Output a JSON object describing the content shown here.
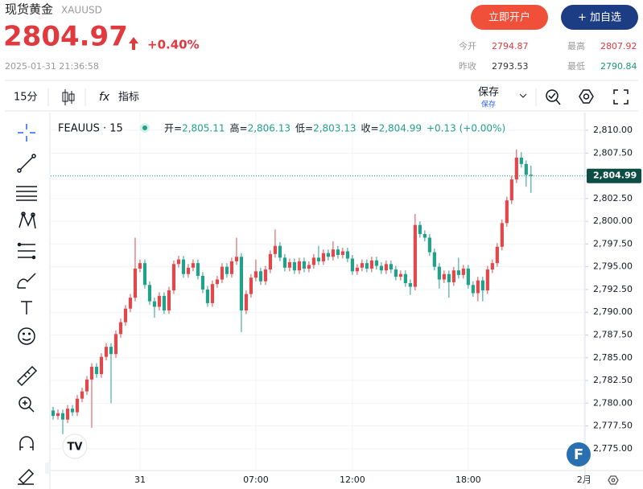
{
  "header": {
    "name": "现货黄金",
    "symbol": "XAUUSD",
    "price": "2804.97",
    "change": "+0.40%",
    "datetime": "2025-01-31 21:36:58",
    "buttons": [
      "立即开户",
      "+ 加自选"
    ],
    "stats": [
      {
        "label": "今开",
        "value": "2794.87"
      },
      {
        "label": "最高",
        "value": "2807.92"
      },
      {
        "label": "昨收",
        "value": "2793.53"
      },
      {
        "label": "最低",
        "value": "2790.84"
      }
    ]
  },
  "toolbar": {
    "interval": "15分",
    "indicators": "指标",
    "save": "保存",
    "save_sub": "保存"
  },
  "chart_data": {
    "type": "candlestick",
    "symbol_label": "FEAUUS · 15",
    "legend": [
      {
        "key": "开=",
        "value": "2,805.11"
      },
      {
        "key": "高=",
        "value": "2,806.13"
      },
      {
        "key": "低=",
        "value": "2,803.13"
      },
      {
        "key": "收=",
        "value": "2,804.99"
      },
      {
        "key": "",
        "value": "+0.13 (+0.00%)"
      }
    ],
    "up_color": "#e0494b",
    "down_color": "#22a08a",
    "grid": true,
    "open": [
      2779.2,
      2778.6,
      2778.9,
      2778.2,
      2779.4,
      2779.0,
      2780.5,
      2781.3,
      2782.6,
      2784.0,
      2783.2,
      2785.1,
      2786.2,
      2785.4,
      2787.6,
      2788.9,
      2790.4,
      2791.6,
      2794.8,
      2795.4,
      2793.0,
      2791.2,
      2790.6,
      2791.8,
      2790.2,
      2792.4,
      2795.3,
      2795.8,
      2794.2,
      2794.9,
      2795.4,
      2794.0,
      2792.5,
      2791.0,
      2793.1,
      2793.6,
      2795.0,
      2794.2,
      2795.6,
      2796.1,
      2790.2,
      2792.0,
      2793.8,
      2794.5,
      2793.4,
      2794.7,
      2796.4,
      2797.3,
      2796.0,
      2794.9,
      2795.5,
      2794.6,
      2795.6,
      2794.8,
      2795.2,
      2796.0,
      2795.6,
      2796.5,
      2796.1,
      2796.9,
      2796.3,
      2796.7,
      2795.9,
      2794.5,
      2794.9,
      2795.4,
      2794.8,
      2795.7,
      2795.1,
      2794.6,
      2795.3,
      2794.7,
      2793.9,
      2794.2,
      2793.2,
      2792.8,
      2799.6,
      2798.6,
      2798.2,
      2796.6,
      2795.0,
      2793.6,
      2794.2,
      2793.3,
      2794.6,
      2794.1,
      2794.8,
      2793.0,
      2792.1,
      2793.5,
      2792.4,
      2794.7,
      2795.4,
      2797.2,
      2799.8,
      2802.3,
      2804.6,
      2807.0,
      2806.3,
      2805.11
    ],
    "high": [
      2779.6,
      2779.3,
      2779.3,
      2779.8,
      2779.8,
      2780.9,
      2781.7,
      2783.0,
      2784.4,
      2784.4,
      2785.5,
      2786.6,
      2786.6,
      2788.0,
      2789.3,
      2790.8,
      2792.0,
      2798.2,
      2795.8,
      2795.8,
      2793.4,
      2791.6,
      2792.2,
      2792.2,
      2792.8,
      2795.7,
      2796.2,
      2796.2,
      2795.3,
      2795.8,
      2795.8,
      2794.4,
      2792.9,
      2793.5,
      2794.0,
      2795.4,
      2795.4,
      2796.0,
      2798.2,
      2796.5,
      2792.4,
      2794.2,
      2795.8,
      2794.9,
      2795.1,
      2796.8,
      2799.1,
      2797.7,
      2796.4,
      2795.9,
      2795.9,
      2796.0,
      2796.0,
      2795.6,
      2796.4,
      2797.3,
      2796.9,
      2796.9,
      2797.8,
      2797.3,
      2797.1,
      2797.1,
      2796.3,
      2795.3,
      2795.8,
      2795.8,
      2796.1,
      2796.1,
      2795.5,
      2795.7,
      2795.7,
      2795.1,
      2794.6,
      2794.6,
      2793.6,
      2800.8,
      2800.0,
      2799.0,
      2798.6,
      2797.0,
      2795.4,
      2794.6,
      2794.6,
      2795.0,
      2796.0,
      2795.2,
      2795.2,
      2793.4,
      2793.9,
      2793.9,
      2795.1,
      2795.8,
      2797.6,
      2800.2,
      2802.7,
      2805.0,
      2807.9,
      2807.6,
      2806.7,
      2806.13
    ],
    "low": [
      2778.2,
      2778.2,
      2776.6,
      2777.8,
      2778.6,
      2778.6,
      2780.1,
      2780.9,
      2777.3,
      2782.8,
      2782.8,
      2784.7,
      2780.0,
      2785.0,
      2787.2,
      2788.5,
      2790.0,
      2791.2,
      2794.4,
      2792.6,
      2790.8,
      2789.4,
      2790.2,
      2789.8,
      2789.8,
      2792.0,
      2794.9,
      2793.8,
      2793.8,
      2794.5,
      2793.6,
      2792.1,
      2790.6,
      2790.6,
      2792.7,
      2793.2,
      2793.8,
      2793.8,
      2795.2,
      2787.8,
      2789.8,
      2791.6,
      2793.4,
      2793.0,
      2793.0,
      2794.3,
      2796.0,
      2795.6,
      2794.5,
      2794.5,
      2794.2,
      2794.2,
      2794.4,
      2794.4,
      2794.8,
      2795.2,
      2795.2,
      2795.7,
      2795.7,
      2795.9,
      2795.9,
      2795.5,
      2794.1,
      2794.1,
      2794.5,
      2794.4,
      2794.4,
      2794.7,
      2794.2,
      2794.2,
      2794.3,
      2793.5,
      2793.5,
      2792.8,
      2791.9,
      2792.4,
      2798.2,
      2797.8,
      2796.2,
      2794.6,
      2792.6,
      2793.2,
      2791.6,
      2792.9,
      2793.7,
      2793.7,
      2792.6,
      2791.7,
      2791.2,
      2791.2,
      2792.0,
      2794.3,
      2795.0,
      2796.8,
      2799.4,
      2801.9,
      2804.2,
      2805.9,
      2803.8,
      2803.13
    ],
    "close": [
      2778.6,
      2778.9,
      2778.2,
      2779.4,
      2779.0,
      2780.5,
      2781.3,
      2782.6,
      2784.0,
      2783.2,
      2785.1,
      2786.2,
      2785.4,
      2787.6,
      2788.9,
      2790.4,
      2791.6,
      2794.8,
      2795.4,
      2793.0,
      2791.2,
      2790.6,
      2791.8,
      2790.2,
      2792.4,
      2795.3,
      2795.8,
      2794.2,
      2794.9,
      2795.4,
      2794.0,
      2792.5,
      2791.0,
      2793.1,
      2793.6,
      2795.0,
      2794.2,
      2795.6,
      2796.1,
      2790.2,
      2792.0,
      2793.8,
      2794.5,
      2793.4,
      2794.7,
      2796.4,
      2797.3,
      2796.0,
      2794.9,
      2795.5,
      2794.6,
      2795.6,
      2794.8,
      2795.2,
      2796.0,
      2795.6,
      2796.5,
      2796.1,
      2796.9,
      2796.3,
      2796.7,
      2795.9,
      2794.5,
      2794.9,
      2795.4,
      2794.8,
      2795.7,
      2795.1,
      2794.6,
      2795.3,
      2794.7,
      2793.9,
      2794.2,
      2793.2,
      2792.8,
      2799.6,
      2798.6,
      2798.2,
      2796.6,
      2795.0,
      2793.6,
      2794.2,
      2793.3,
      2794.6,
      2794.1,
      2794.8,
      2793.0,
      2792.1,
      2793.5,
      2792.4,
      2794.7,
      2795.4,
      2797.2,
      2799.8,
      2802.3,
      2804.6,
      2807.0,
      2806.3,
      2805.11,
      2804.99
    ],
    "xlim": [
      -0.5,
      110.2
    ],
    "xticks": [
      {
        "value": 18,
        "label": "31"
      },
      {
        "value": 42,
        "label": "07:00"
      },
      {
        "value": 62,
        "label": "12:00"
      },
      {
        "value": 86,
        "label": "18:00"
      },
      {
        "value": 110,
        "label": "2月"
      }
    ],
    "ylim": [
      2772.6,
      2811.95
    ],
    "yticks": [
      {
        "value": 2775,
        "label": "2,775.00"
      },
      {
        "value": 2777.5,
        "label": "2,777.50"
      },
      {
        "value": 2780,
        "label": "2,780.00"
      },
      {
        "value": 2782.5,
        "label": "2,782.50"
      },
      {
        "value": 2785,
        "label": "2,785.00"
      },
      {
        "value": 2787.5,
        "label": "2,787.50"
      },
      {
        "value": 2790,
        "label": "2,790.00"
      },
      {
        "value": 2792.5,
        "label": "2,792.50"
      },
      {
        "value": 2795,
        "label": "2,795.00"
      },
      {
        "value": 2797.5,
        "label": "2,797.50"
      },
      {
        "value": 2800,
        "label": "2,800.00"
      },
      {
        "value": 2802.5,
        "label": "2,802.50"
      },
      {
        "value": 2805,
        "label": "2,805.00"
      },
      {
        "value": 2807.5,
        "label": "2,807.50"
      },
      {
        "value": 2810,
        "label": "2,810.00"
      }
    ],
    "last_price": {
      "value": 2804.99,
      "label": "2,804.99"
    }
  }
}
